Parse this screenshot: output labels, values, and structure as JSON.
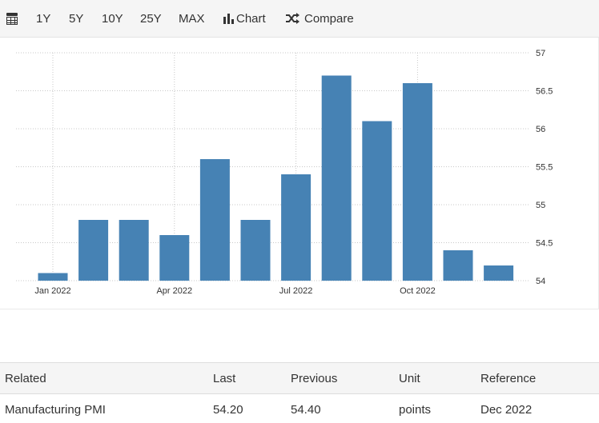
{
  "toolbar": {
    "icons": {
      "calendar": "calendar-icon",
      "chart": "bar-chart-icon",
      "compare": "shuffle-icon"
    },
    "ranges": [
      "1Y",
      "5Y",
      "10Y",
      "25Y",
      "MAX"
    ],
    "chart_label": "Chart",
    "compare_label": "Compare"
  },
  "chart_data": {
    "type": "bar",
    "color": "#4682b4",
    "grid": true,
    "months": [
      "Jan 2022",
      "Feb 2022",
      "Mar 2022",
      "Apr 2022",
      "May 2022",
      "Jun 2022",
      "Jul 2022",
      "Aug 2022",
      "Sep 2022",
      "Oct 2022",
      "Nov 2022",
      "Dec 2022"
    ],
    "values": [
      54.1,
      54.8,
      54.8,
      54.6,
      55.6,
      54.8,
      55.4,
      56.7,
      56.1,
      56.6,
      54.4,
      54.2
    ],
    "ylim": [
      54,
      57
    ],
    "yticks": [
      "57",
      "56.5",
      "56",
      "55.5",
      "55",
      "54.5",
      "54"
    ],
    "xtick_labels": [
      "Jan 2022",
      "Apr 2022",
      "Jul 2022",
      "Oct 2022"
    ],
    "y_axis_position": "right"
  },
  "related": {
    "headers": [
      "Related",
      "Last",
      "Previous",
      "Unit",
      "Reference"
    ],
    "rows": [
      [
        "Manufacturing PMI",
        "54.20",
        "54.40",
        "points",
        "Dec 2022"
      ]
    ]
  }
}
